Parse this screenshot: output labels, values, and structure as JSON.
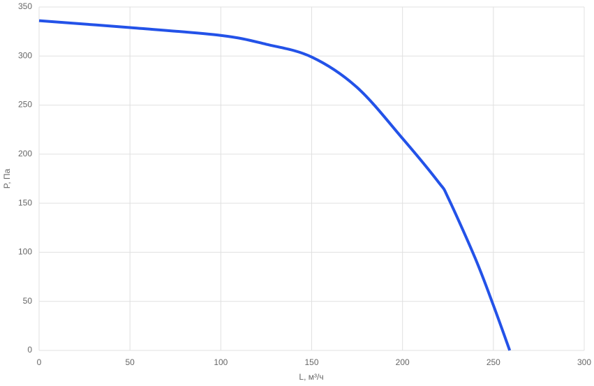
{
  "chart_data": {
    "type": "line",
    "xlabel": "L, м³/ч",
    "ylabel": "P, Па",
    "x": [
      0,
      50,
      100,
      125,
      150,
      175,
      200,
      220,
      225,
      240,
      250,
      259
    ],
    "values": [
      336,
      329,
      321,
      312,
      299,
      268,
      216,
      171,
      156,
      94,
      46,
      0
    ],
    "color": "#2352e8",
    "xlim": [
      0,
      300
    ],
    "xticks": [
      0,
      50,
      100,
      150,
      200,
      250,
      300
    ],
    "ylim": [
      0,
      350
    ],
    "yticks": [
      0,
      50,
      100,
      150,
      200,
      250,
      300,
      350
    ],
    "grid": true
  }
}
